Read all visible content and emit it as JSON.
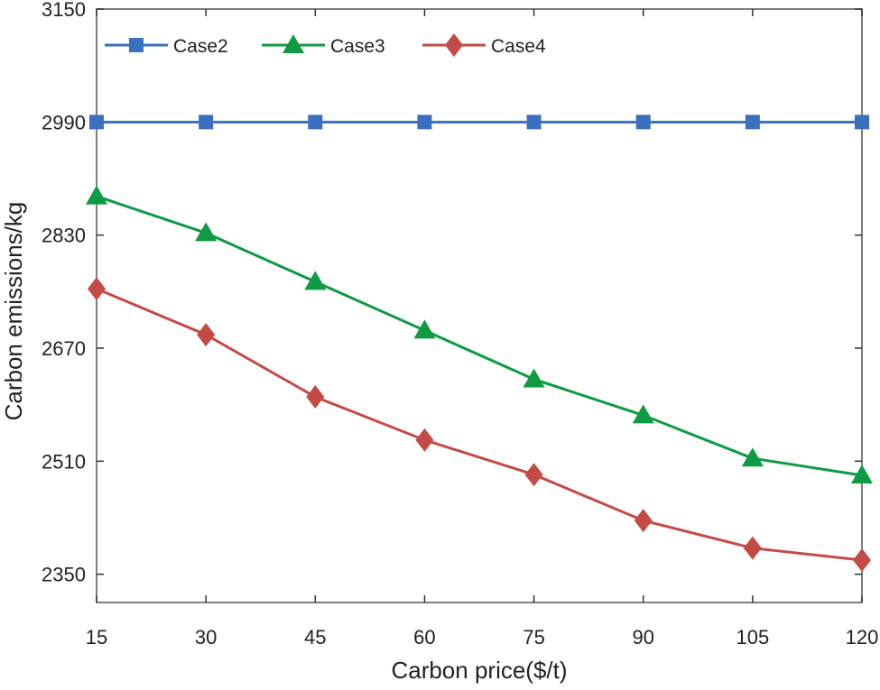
{
  "chart_data": {
    "type": "line",
    "title": "",
    "xlabel": "Carbon price($/t)",
    "ylabel": "Carbon emissions/kg",
    "x": [
      15,
      30,
      45,
      60,
      75,
      90,
      105,
      120
    ],
    "xlim": [
      15,
      120
    ],
    "ylim": [
      2310,
      3150
    ],
    "xticks": [
      "15",
      "30",
      "45",
      "60",
      "75",
      "90",
      "105",
      "120"
    ],
    "yticks": [
      "2350",
      "2510",
      "2670",
      "2830",
      "2990",
      "3150"
    ],
    "grid": false,
    "legend_position": "top-left",
    "series": [
      {
        "name": "Case2",
        "color": "#3b6fbf",
        "marker": "square",
        "values": [
          2990,
          2990,
          2990,
          2990,
          2990,
          2990,
          2990,
          2990
        ]
      },
      {
        "name": "Case3",
        "color": "#0f9a44",
        "marker": "triangle",
        "values": [
          2885,
          2833,
          2764,
          2695,
          2626,
          2575,
          2514,
          2490
        ]
      },
      {
        "name": "Case4",
        "color": "#c44a46",
        "marker": "diamond",
        "values": [
          2754,
          2689,
          2601,
          2540,
          2491,
          2426,
          2387,
          2370
        ]
      }
    ]
  }
}
